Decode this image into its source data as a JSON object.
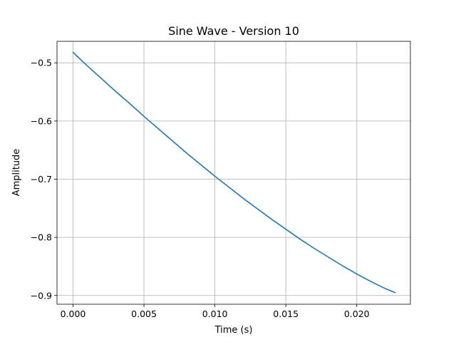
{
  "chart_data": {
    "type": "line",
    "title": "Sine Wave - Version 10",
    "xlabel": "Time (s)",
    "ylabel": "Amplitude",
    "xlim": [
      -0.00113,
      0.02378
    ],
    "ylim": [
      -0.915,
      -0.463
    ],
    "grid": true,
    "xticks": [
      0.0,
      0.005,
      0.01,
      0.015,
      0.02
    ],
    "xtick_labels": [
      "0.000",
      "0.005",
      "0.010",
      "0.015",
      "0.020"
    ],
    "yticks": [
      -0.5,
      -0.6,
      -0.7,
      -0.8,
      -0.9
    ],
    "ytick_labels": [
      "−0.5",
      "−0.6",
      "−0.7",
      "−0.8",
      "−0.9"
    ],
    "series": [
      {
        "color": "#1f77b4",
        "x": [
          0.0,
          0.001,
          0.002,
          0.003,
          0.004,
          0.005,
          0.006,
          0.007,
          0.008,
          0.009,
          0.01,
          0.011,
          0.012,
          0.013,
          0.014,
          0.015,
          0.016,
          0.017,
          0.018,
          0.019,
          0.02,
          0.021,
          0.022,
          0.0227
        ],
        "y": [
          -0.482,
          -0.505,
          -0.527,
          -0.549,
          -0.57,
          -0.592,
          -0.613,
          -0.634,
          -0.655,
          -0.675,
          -0.695,
          -0.714,
          -0.733,
          -0.751,
          -0.769,
          -0.786,
          -0.803,
          -0.819,
          -0.834,
          -0.849,
          -0.863,
          -0.876,
          -0.888,
          -0.895
        ]
      }
    ]
  }
}
